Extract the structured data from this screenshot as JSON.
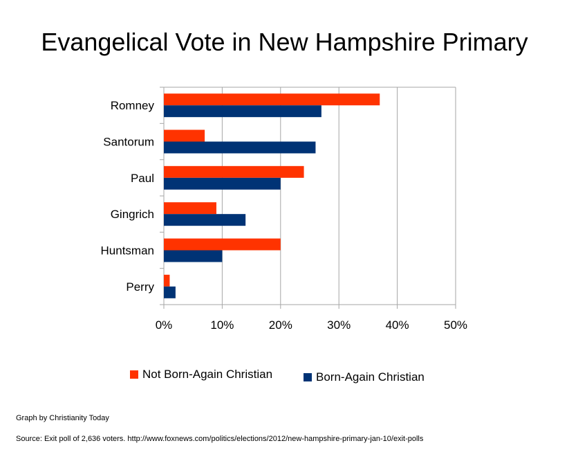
{
  "chart_data": {
    "type": "bar",
    "orientation": "horizontal",
    "title": "Evangelical Vote in New Hampshire Primary",
    "categories": [
      "Romney",
      "Santorum",
      "Paul",
      "Gingrich",
      "Huntsman",
      "Perry"
    ],
    "series": [
      {
        "name": "Not Born-Again Christian",
        "color": "#ff3300",
        "values": [
          37,
          7,
          24,
          9,
          20,
          1
        ]
      },
      {
        "name": "Born-Again Christian",
        "color": "#003375",
        "values": [
          27,
          26,
          20,
          14,
          10,
          2
        ]
      }
    ],
    "xlabel": "",
    "ylabel": "",
    "xlim": [
      0,
      50
    ],
    "xticks": [
      "0%",
      "10%",
      "20%",
      "30%",
      "40%",
      "50%"
    ],
    "grid": true,
    "legend_position": "bottom"
  },
  "footer": {
    "credit": "Graph by Christianity Today",
    "source": "Source: Exit poll of 2,636 voters.  http://www.foxnews.com/politics/elections/2012/new-hampshire-primary-jan-10/exit-polls"
  }
}
